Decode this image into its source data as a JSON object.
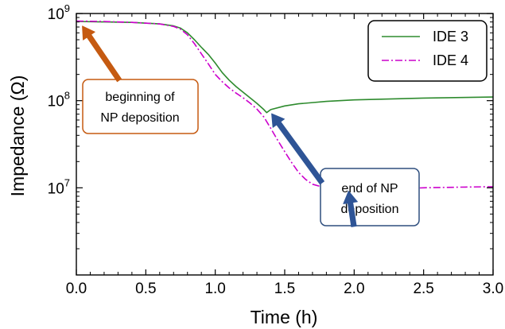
{
  "chart_data": {
    "type": "line",
    "xlabel": "Time (h)",
    "ylabel": "Impedance (Ω)",
    "xlim": [
      0,
      3.0
    ],
    "ylim": [
      1000000.0,
      1000000000.0
    ],
    "yscale": "log",
    "grid": false,
    "legend_position": "top-right",
    "x_ticks": [
      {
        "value": 0.0,
        "label": "0.0"
      },
      {
        "value": 0.5,
        "label": "0.5"
      },
      {
        "value": 1.0,
        "label": "1.0"
      },
      {
        "value": 1.5,
        "label": "1.5"
      },
      {
        "value": 2.0,
        "label": "2.0"
      },
      {
        "value": 2.5,
        "label": "2.5"
      },
      {
        "value": 3.0,
        "label": "3.0"
      }
    ],
    "y_ticks": [
      {
        "value": 10000000.0,
        "base": "10",
        "exp": "7"
      },
      {
        "value": 100000000.0,
        "base": "10",
        "exp": "8"
      },
      {
        "value": 1000000000.0,
        "base": "10",
        "exp": "9"
      }
    ],
    "series": [
      {
        "name": "IDE 3",
        "color": "#2e8b2e",
        "dash": "solid",
        "x": [
          0.0,
          0.2,
          0.4,
          0.6,
          0.7,
          0.75,
          0.8,
          0.85,
          0.9,
          0.95,
          1.0,
          1.05,
          1.1,
          1.15,
          1.2,
          1.25,
          1.3,
          1.35,
          1.37,
          1.4,
          1.5,
          1.6,
          1.8,
          2.0,
          2.5,
          3.0
        ],
        "y": [
          810000000.0,
          800000000.0,
          790000000.0,
          760000000.0,
          720000000.0,
          680000000.0,
          600000000.0,
          500000000.0,
          410000000.0,
          340000000.0,
          270000000.0,
          210000000.0,
          172000000.0,
          145000000.0,
          125000000.0,
          108000000.0,
          93000000.0,
          79000000.0,
          73000000.0,
          79000000.0,
          87000000.0,
          92000000.0,
          98000000.0,
          102000000.0,
          107000000.0,
          110000000.0
        ]
      },
      {
        "name": "IDE 4",
        "color": "#cc00cc",
        "dash": "dashdot",
        "x": [
          0.0,
          0.2,
          0.4,
          0.6,
          0.7,
          0.75,
          0.8,
          0.85,
          0.9,
          0.95,
          1.0,
          1.05,
          1.1,
          1.15,
          1.2,
          1.25,
          1.3,
          1.35,
          1.4,
          1.45,
          1.5,
          1.55,
          1.6,
          1.65,
          1.7,
          1.8,
          1.9,
          1.95,
          2.0,
          2.1,
          2.3,
          2.5,
          2.8,
          3.0
        ],
        "y": [
          820000000.0,
          810000000.0,
          790000000.0,
          760000000.0,
          710000000.0,
          660000000.0,
          570000000.0,
          450000000.0,
          345000000.0,
          265000000.0,
          200000000.0,
          165000000.0,
          140000000.0,
          122000000.0,
          108000000.0,
          94000000.0,
          80000000.0,
          65000000.0,
          48000000.0,
          35000000.0,
          26000000.0,
          19500000.0,
          15000000.0,
          12500000.0,
          11000000.0,
          9900000.0,
          9300000.0,
          9200000.0,
          9200000.0,
          9300000.0,
          9700000.0,
          10000000.0,
          10200000.0,
          10300000.0
        ]
      }
    ],
    "annotations": [
      {
        "lines": [
          "beginning of",
          "NP deposition"
        ],
        "border_color": "#c55a11",
        "arrow_color": "#c55a11",
        "points_to": {
          "x": 0.02,
          "y": 780000000.0
        }
      },
      {
        "lines": [
          "end of NP",
          "deposition"
        ],
        "border_color": "#2f4f7f",
        "arrow_color": "#2e5496",
        "points_to_1": {
          "x": 1.4,
          "y": 74000000.0
        },
        "points_to_2": {
          "x": 1.96,
          "y": 9000000.0
        }
      }
    ]
  }
}
